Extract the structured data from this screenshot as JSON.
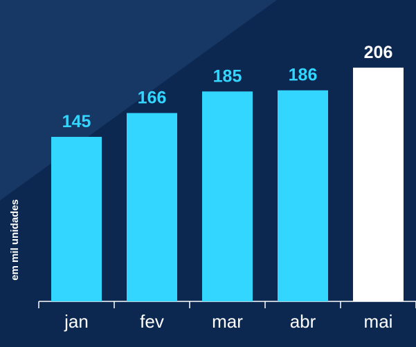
{
  "chart_data": {
    "type": "bar",
    "y_axis_label": "em mil unidades",
    "categories": [
      "jan",
      "fev",
      "mar",
      "abr",
      "mai"
    ],
    "values": [
      145,
      166,
      185,
      186,
      206
    ],
    "colors": [
      "#33d6ff",
      "#33d6ff",
      "#33d6ff",
      "#33d6ff",
      "#ffffff"
    ],
    "ylim": [
      0,
      265
    ]
  }
}
